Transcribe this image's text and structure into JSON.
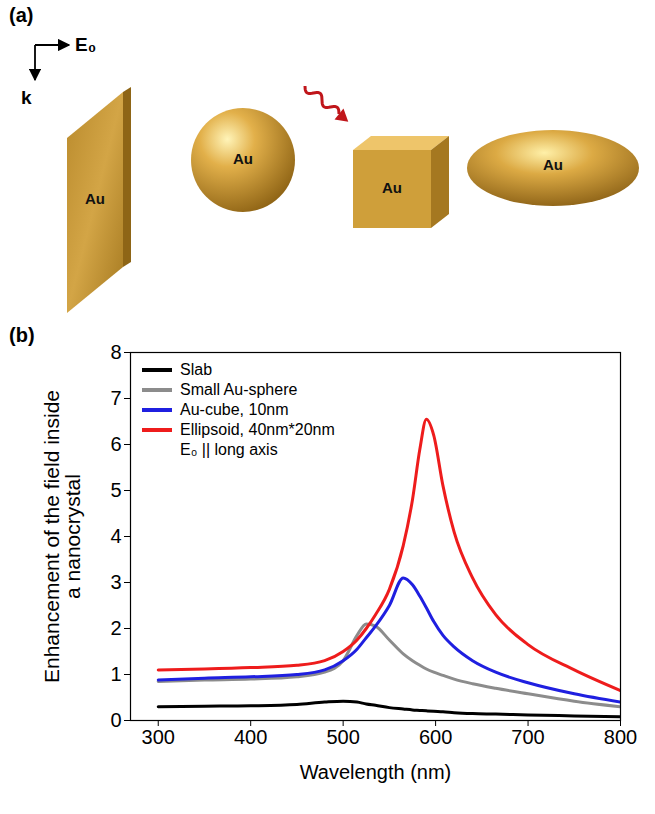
{
  "panel_a": {
    "label": "(a)",
    "field_label": "E₀",
    "wave_vector_label": "k",
    "particle_labels": [
      "Au",
      "Au",
      "Au",
      "Au"
    ]
  },
  "chart_data": {
    "panel_label": "(b)",
    "type": "line",
    "xlabel": "Wavelength (nm)",
    "ylabel": "Enhancement of the field inside a nanocrystal",
    "x": [
      300,
      350,
      400,
      450,
      480,
      500,
      515,
      525,
      535,
      550,
      565,
      575,
      583,
      590,
      598,
      608,
      620,
      640,
      665,
      700,
      750,
      800
    ],
    "series": [
      {
        "name": "Slab",
        "color": "#000000",
        "values": [
          0.3,
          0.31,
          0.32,
          0.35,
          0.4,
          0.42,
          0.4,
          0.36,
          0.33,
          0.28,
          0.25,
          0.23,
          0.22,
          0.21,
          0.2,
          0.19,
          0.17,
          0.15,
          0.14,
          0.12,
          0.1,
          0.08
        ]
      },
      {
        "name": "Small Au-sphere",
        "color": "#8c8c8c",
        "values": [
          0.85,
          0.88,
          0.9,
          0.95,
          1.05,
          1.3,
          1.85,
          2.1,
          2.05,
          1.75,
          1.45,
          1.3,
          1.2,
          1.12,
          1.05,
          0.98,
          0.9,
          0.8,
          0.7,
          0.58,
          0.42,
          0.3
        ]
      },
      {
        "name": "Au-cube, 10nm",
        "color": "#1f1fe0",
        "values": [
          0.88,
          0.92,
          0.95,
          1.0,
          1.1,
          1.3,
          1.55,
          1.8,
          2.05,
          2.5,
          3.1,
          2.95,
          2.7,
          2.45,
          2.15,
          1.85,
          1.6,
          1.3,
          1.05,
          0.82,
          0.58,
          0.4
        ]
      },
      {
        "name": "Ellipsoid, 40nm*20nm",
        "color": "#ee1c1c",
        "values": [
          1.1,
          1.12,
          1.15,
          1.2,
          1.3,
          1.5,
          1.75,
          2.0,
          2.3,
          2.85,
          3.8,
          4.8,
          5.9,
          6.55,
          6.2,
          5.1,
          4.1,
          3.1,
          2.3,
          1.65,
          1.1,
          0.65
        ]
      }
    ],
    "legend": "top-left",
    "legend_note": "E₀ || long axis",
    "xlim": [
      270,
      800
    ],
    "ylim": [
      0,
      8
    ],
    "xticks": [
      300,
      400,
      500,
      600,
      700,
      800
    ],
    "yticks": [
      0,
      1,
      2,
      3,
      4,
      5,
      6,
      7,
      8
    ],
    "grid": false
  }
}
